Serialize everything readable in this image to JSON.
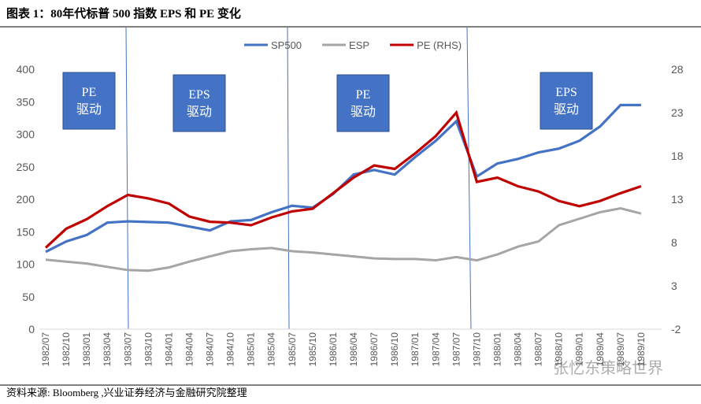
{
  "header": {
    "title": "图表 1：80年代标普 500 指数 EPS 和 PE 变化"
  },
  "chart_data": {
    "type": "line",
    "categories": [
      "1982/07",
      "1982/10",
      "1983/01",
      "1983/04",
      "1983/07",
      "1983/10",
      "1984/01",
      "1984/04",
      "1984/07",
      "1984/10",
      "1985/01",
      "1985/04",
      "1985/07",
      "1985/10",
      "1986/01",
      "1986/04",
      "1986/07",
      "1986/10",
      "1987/01",
      "1987/04",
      "1987/07",
      "1987/10",
      "1988/01",
      "1988/04",
      "1988/07",
      "1988/10",
      "1989/01",
      "1989/04",
      "1989/07",
      "1989/10"
    ],
    "series": [
      {
        "name": "SP500",
        "color": "#4472c4",
        "values": [
          119,
          135,
          145,
          164,
          166,
          165,
          164,
          158,
          152,
          166,
          168,
          180,
          190,
          187,
          208,
          238,
          245,
          238,
          265,
          290,
          320,
          235,
          255,
          262,
          272,
          278,
          290,
          312,
          345,
          345
        ]
      },
      {
        "name": "ESP",
        "color": "#a5a5a5",
        "values": [
          107,
          104,
          101,
          96,
          91,
          90,
          95,
          104,
          112,
          120,
          123,
          125,
          120,
          118,
          115,
          112,
          109,
          108,
          108,
          106,
          111,
          106,
          115,
          127,
          135,
          160,
          170,
          180,
          186,
          178
        ]
      },
      {
        "name": "PE (RHS)",
        "color": "#c00000",
        "axis": "y2",
        "values": [
          7.4,
          9.6,
          10.7,
          12.2,
          13.5,
          13.1,
          12.5,
          11.0,
          10.4,
          10.3,
          10.0,
          10.9,
          11.6,
          11.9,
          13.7,
          15.5,
          16.9,
          16.5,
          18.3,
          20.3,
          23.0,
          15.0,
          15.5,
          14.5,
          13.9,
          12.8,
          12.2,
          12.8,
          13.7,
          14.5
        ]
      }
    ],
    "ylim": [
      0,
      400
    ],
    "yticks": [
      0,
      50,
      100,
      150,
      200,
      250,
      300,
      350,
      400
    ],
    "y2lim": [
      -2,
      28
    ],
    "y2ticks": [
      -2,
      3,
      8,
      13,
      18,
      23,
      28
    ],
    "annotations": [
      "PE 驱动",
      "EPS 驱动",
      "PE 驱动",
      "EPS 驱动"
    ]
  },
  "watermark": "张忆东策略世界",
  "footer": {
    "source": "资料来源: Bloomberg ,兴业证券经济与金融研究院整理"
  }
}
